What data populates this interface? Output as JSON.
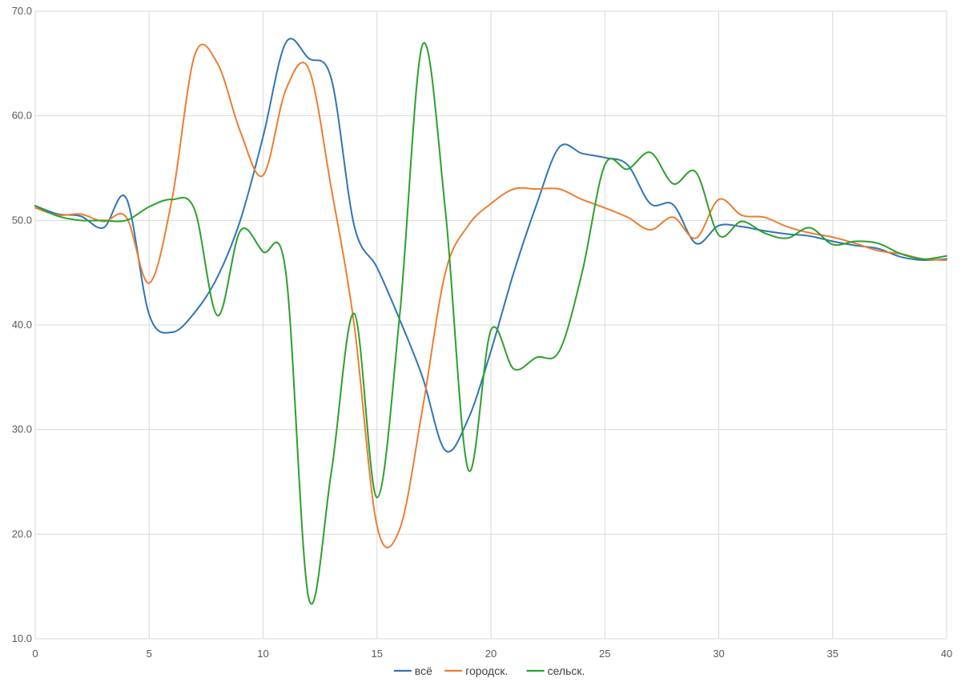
{
  "chart_data": {
    "type": "line",
    "title": "",
    "xlabel": "",
    "ylabel": "",
    "xlim": [
      0,
      40
    ],
    "ylim": [
      10,
      70
    ],
    "x_ticks": [
      0,
      5,
      10,
      15,
      20,
      25,
      30,
      35,
      40
    ],
    "y_ticks": [
      10,
      20,
      30,
      40,
      50,
      60,
      70
    ],
    "x_tick_labels": [
      "0",
      "5",
      "10",
      "15",
      "20",
      "25",
      "30",
      "35",
      "40"
    ],
    "y_tick_labels": [
      "10.0",
      "20.0",
      "30.0",
      "40.0",
      "50.0",
      "60.0",
      "70.0"
    ],
    "grid": true,
    "legend_position": "bottom",
    "x": [
      0,
      1,
      2,
      3,
      4,
      5,
      6,
      7,
      8,
      9,
      10,
      11,
      12,
      13,
      14,
      15,
      16,
      17,
      18,
      19,
      20,
      21,
      22,
      23,
      24,
      25,
      26,
      27,
      28,
      29,
      30,
      31,
      32,
      33,
      34,
      35,
      36,
      37,
      38,
      39,
      40
    ],
    "series": [
      {
        "name": "всё",
        "color": "#2E75B6",
        "values": [
          51.4,
          50.6,
          50.4,
          49.3,
          52.1,
          41.0,
          39.3,
          41.2,
          44.6,
          50.0,
          58.0,
          67.0,
          65.5,
          63.5,
          49.5,
          45.5,
          40.5,
          35.0,
          28.0,
          31.0,
          37.5,
          45.0,
          51.5,
          57.0,
          56.4,
          56.0,
          55.3,
          51.6,
          51.5,
          47.8,
          49.5,
          49.4,
          49.0,
          48.7,
          48.5,
          48.0,
          47.6,
          47.3,
          46.5,
          46.2,
          46.3
        ]
      },
      {
        "name": "городск.",
        "color": "#ED7D31",
        "values": [
          51.2,
          50.5,
          50.6,
          49.9,
          50.3,
          44.0,
          52.0,
          65.8,
          65.0,
          58.5,
          54.3,
          62.5,
          64.5,
          53.0,
          40.0,
          20.8,
          20.5,
          32.0,
          45.0,
          49.5,
          51.6,
          53.0,
          53.0,
          53.0,
          52.0,
          51.2,
          50.3,
          49.1,
          50.3,
          48.3,
          52.0,
          50.5,
          50.3,
          49.4,
          48.8,
          48.4,
          47.8,
          47.1,
          46.8,
          46.3,
          46.2
        ]
      },
      {
        "name": "сельск.",
        "color": "#2CA02C",
        "values": [
          51.4,
          50.4,
          50.0,
          50.0,
          50.0,
          51.3,
          52.0,
          51.0,
          40.9,
          49.0,
          47.0,
          45.0,
          13.9,
          26.0,
          41.1,
          23.5,
          41.0,
          66.8,
          51.0,
          26.2,
          39.5,
          35.8,
          36.9,
          37.5,
          45.0,
          55.3,
          54.9,
          56.5,
          53.5,
          54.6,
          48.6,
          49.9,
          48.8,
          48.3,
          49.3,
          47.7,
          48.0,
          47.8,
          46.8,
          46.3,
          46.6
        ]
      }
    ]
  }
}
